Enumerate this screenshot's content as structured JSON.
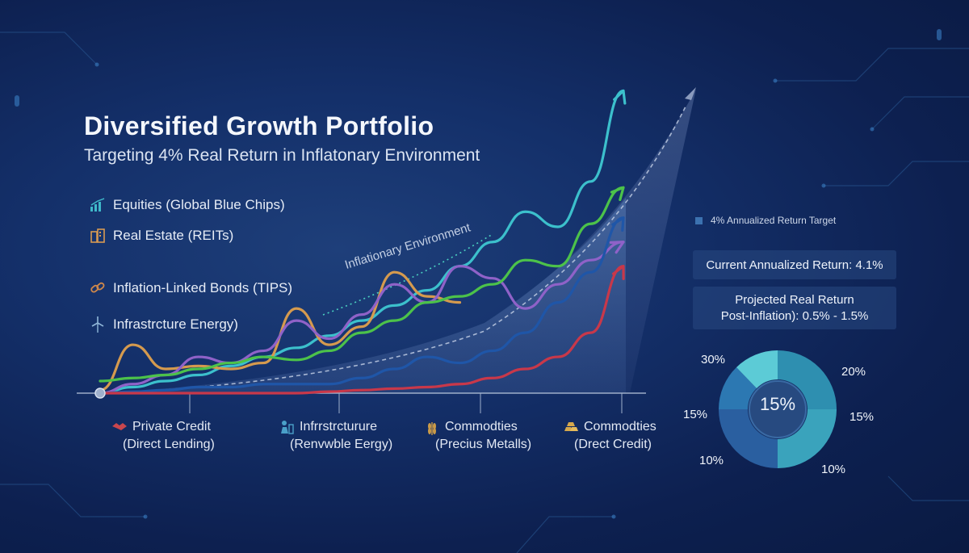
{
  "title": "Diversified Growth Portfolio",
  "subtitle": "Targeting 4% Real Return in Inflatonary Environment",
  "legend": [
    {
      "label": "Equities (Global Blue Chips)",
      "icon": "bar-chart-icon",
      "color": "#3fb8c9"
    },
    {
      "label": "Real Estate (REITs)",
      "icon": "building-icon",
      "color": "#d89a52"
    },
    {
      "label": "Inflation-Linked Bonds (TIPS)",
      "icon": "link-icon",
      "color": "#d0884a"
    },
    {
      "label": "Infrastrcture Energy)",
      "icon": "wind-turbine-icon",
      "color": "#8fb6d8"
    }
  ],
  "curve_label": "Inflationary Environment",
  "categories": [
    {
      "line1": "Private Credit",
      "line2": "(Direct Lending)",
      "icon": "handshake-icon",
      "color": "#c9464d"
    },
    {
      "line1": "Infrrstrcturure",
      "line2": "(Renvwble Eergy)",
      "icon": "person-building-icon",
      "color": "#4aa0c9"
    },
    {
      "line1": "Commodties",
      "line2": "(Precius Metalls)",
      "icon": "wheat-icon",
      "color": "#c99a48"
    },
    {
      "line1": "Commodties",
      "line2": "(Drect Credit)",
      "icon": "gold-bars-icon",
      "color": "#d6a84c"
    }
  ],
  "target_label": "4% Annualized Return Target",
  "current_return": "Current Annualized Return: 4.1%",
  "projected_line1": "Projected Real Return",
  "projected_line2": "Post-Inflation): 0.5% - 1.5%",
  "donut": {
    "center_label": "15%",
    "labels": {
      "top_left": "30%",
      "top_right": "20%",
      "mid_left": "15%",
      "mid_right": "15%",
      "bottom_left": "10%",
      "bottom_right": "10%"
    }
  },
  "chart_data": {
    "type": "line",
    "title": "Diversified Growth Portfolio",
    "xlabel": "",
    "ylabel": "",
    "x": [
      0,
      1,
      2,
      3,
      4,
      5,
      6,
      7,
      8,
      9,
      10,
      11,
      12,
      13,
      14,
      15,
      16
    ],
    "series": [
      {
        "color": "#3cc0cc",
        "values": [
          0,
          2,
          4,
          6,
          9,
          12,
          15,
          19,
          24,
          29,
          34,
          42,
          50,
          60,
          55,
          70,
          100
        ]
      },
      {
        "color": "#d59a4e",
        "values": [
          1,
          16,
          8,
          9,
          8,
          10,
          28,
          16,
          22,
          40,
          32,
          30,
          null,
          null,
          null,
          null,
          null
        ]
      },
      {
        "color": "#8f62c8",
        "values": [
          0,
          3,
          6,
          12,
          10,
          14,
          24,
          18,
          26,
          36,
          30,
          42,
          38,
          28,
          36,
          44,
          50
        ]
      },
      {
        "color": "#4cc24a",
        "values": [
          4,
          5,
          6,
          8,
          10,
          12,
          11,
          14,
          20,
          24,
          30,
          32,
          36,
          44,
          42,
          56,
          68
        ]
      },
      {
        "color": "#1f56a8",
        "values": [
          0,
          0.5,
          1,
          2,
          2,
          3,
          3,
          3,
          5,
          8,
          12,
          10,
          14,
          20,
          30,
          40,
          58
        ]
      },
      {
        "color": "#c8384a",
        "values": [
          0,
          0,
          0,
          0,
          0,
          0,
          0,
          0.5,
          1,
          1.5,
          2,
          3,
          5,
          8,
          12,
          20,
          42
        ]
      }
    ],
    "ylim": [
      0,
      110
    ]
  }
}
